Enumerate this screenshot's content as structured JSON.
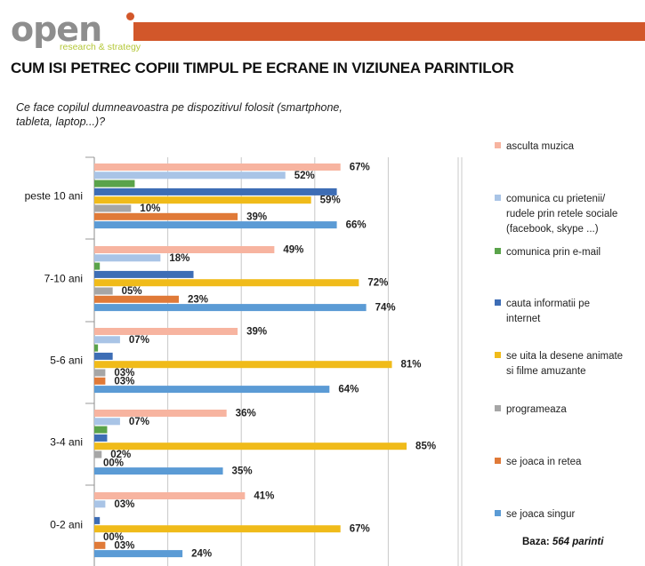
{
  "brand": {
    "logo_word": "open",
    "logo_tagline": "research & strategy",
    "accent": "#d2572a",
    "logo_gray": "#8e8e8e",
    "tagline_color": "#b5c83a"
  },
  "page": {
    "title": "CUM ISI PETREC COPIII TIMPUL PE ECRANE IN VIZIUNEA PARINTILOR",
    "question": "Ce face copilul dumneavoastra pe dispozitivul folosit (smartphone, tableta, laptop...)?"
  },
  "footnote": {
    "label": "Baza:",
    "value": "564 parinti"
  },
  "chart_data": {
    "type": "bar",
    "orientation": "horizontal",
    "categories": [
      "peste 10 ani",
      "7-10 ani",
      "5-6 ani",
      "3-4 ani",
      "0-2 ani"
    ],
    "xlim": [
      0,
      100
    ],
    "grid": true,
    "legend_position": "right",
    "series": [
      {
        "name": "asculta muzica",
        "color": "#f7b4a0",
        "values": [
          67,
          49,
          39,
          36,
          41
        ],
        "labels": [
          "67%",
          "49%",
          "39%",
          "36%",
          "41%"
        ]
      },
      {
        "name": "comunica cu prietenii/ rudele prin retele sociale (facebook, skype ...)",
        "color": "#a9c4e6",
        "values": [
          52,
          18,
          7,
          7,
          3
        ],
        "labels": [
          "52%",
          "18%",
          "07%",
          "07%",
          "03%"
        ]
      },
      {
        "name": "comunica prin e-mail",
        "color": "#5aa34a",
        "values": [
          11,
          1.5,
          1,
          3.5,
          null
        ],
        "labels": [
          null,
          null,
          null,
          null,
          null
        ]
      },
      {
        "name": "cauta informatii pe internet",
        "color": "#3d6db5",
        "values": [
          66,
          27,
          5,
          3.5,
          1.5
        ],
        "labels": [
          null,
          null,
          null,
          null,
          null
        ]
      },
      {
        "name": "se uita la desene animate si filme amuzante",
        "color": "#f0bb1a",
        "values": [
          59,
          72,
          81,
          85,
          67
        ],
        "labels": [
          "59%",
          "72%",
          "81%",
          "85%",
          "67%"
        ]
      },
      {
        "name": "programeaza",
        "color": "#a6a6a6",
        "values": [
          10,
          5,
          3,
          2,
          0
        ],
        "labels": [
          "10%",
          "05%",
          "03%",
          "02%",
          "00%"
        ]
      },
      {
        "name": "se joaca in retea",
        "color": "#e07a38",
        "values": [
          39,
          23,
          3,
          0,
          3
        ],
        "labels": [
          "39%",
          "23%",
          "03%",
          "00%",
          "03%"
        ]
      },
      {
        "name": "se joaca singur",
        "color": "#5b9bd5",
        "values": [
          66,
          74,
          64,
          35,
          24
        ],
        "labels": [
          "66%",
          "74%",
          "64%",
          "35%",
          "24%"
        ]
      }
    ]
  }
}
